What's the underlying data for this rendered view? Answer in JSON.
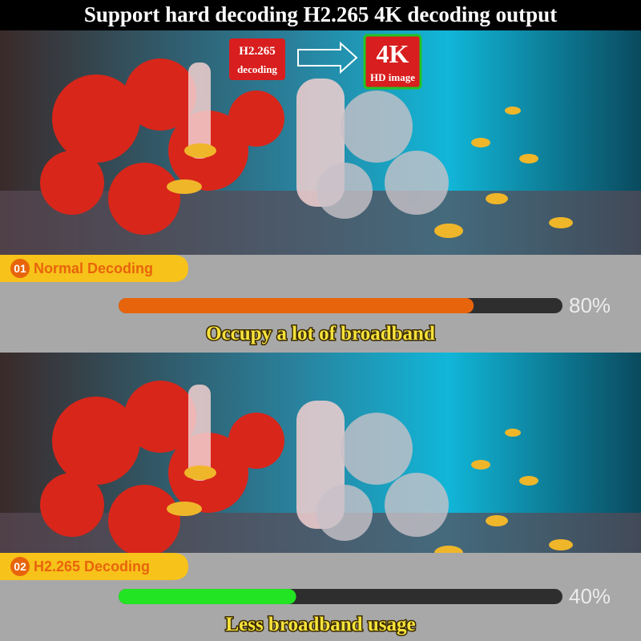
{
  "header": {
    "title": "Support hard decoding H2.265 4K decoding output"
  },
  "badges": {
    "codec": "H2.265",
    "codec_sub": "decoding",
    "output": "4K",
    "output_sub": "HD image"
  },
  "panels": [
    {
      "number": "01",
      "label": "Normal Decoding",
      "value": 80,
      "value_label": "80%",
      "xlim": [
        0,
        100
      ],
      "color": "#e8640c",
      "caption": "Occupy a lot of broadband"
    },
    {
      "number": "02",
      "label": "H2.265 Decoding",
      "value": 40,
      "value_label": "40%",
      "xlim": [
        0,
        100
      ],
      "color": "#22e422",
      "caption": "Less broadband usage"
    }
  ]
}
